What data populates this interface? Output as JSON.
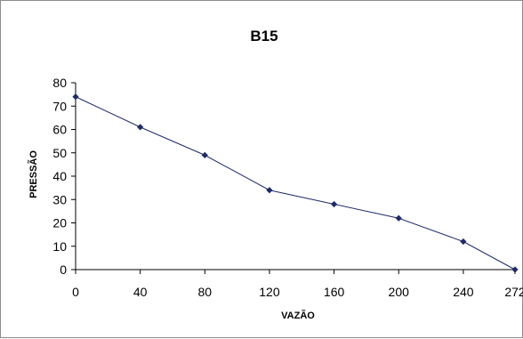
{
  "chart_data": {
    "type": "line",
    "title": "B15",
    "xlabel": "VAZÃO",
    "ylabel": "PRESSÃO",
    "x": [
      0,
      40,
      80,
      120,
      160,
      200,
      240,
      272
    ],
    "x_tick_labels": [
      "0",
      "40",
      "80",
      "120",
      "160",
      "200",
      "240",
      "272"
    ],
    "series": [
      {
        "values": [
          74,
          61,
          49,
          34,
          28,
          22,
          12,
          0
        ]
      }
    ],
    "ylim": [
      0,
      80
    ],
    "y_ticks": [
      0,
      10,
      20,
      30,
      40,
      50,
      60,
      70,
      80
    ],
    "grid": false,
    "legend": "none",
    "colors": {
      "line": "#1f2a6b",
      "marker": "#1f2a6b",
      "axis": "#000000"
    }
  }
}
